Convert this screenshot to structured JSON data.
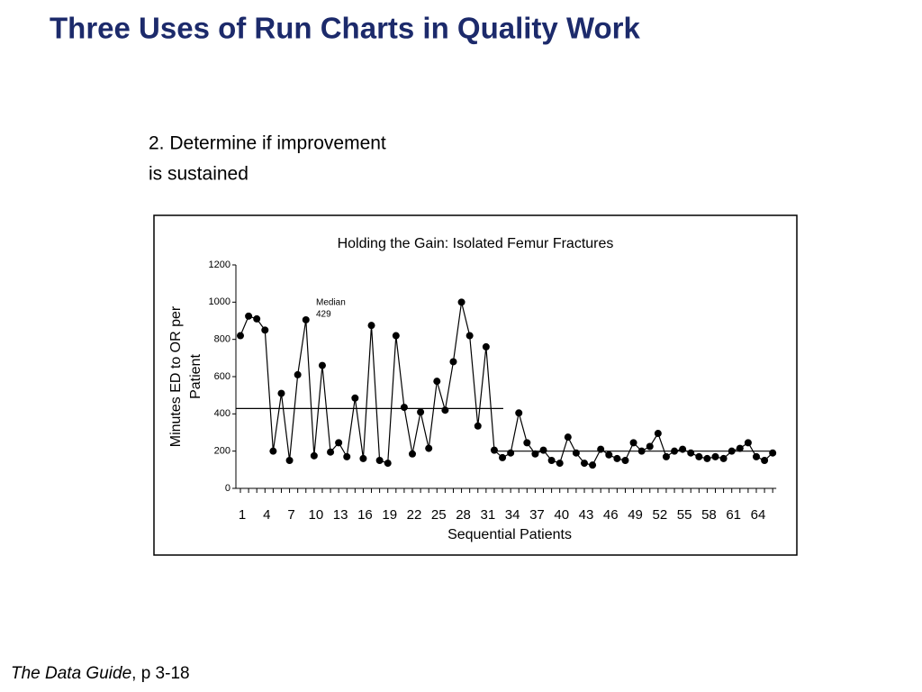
{
  "slide": {
    "title": "Three Uses of Run Charts in Quality Work",
    "subtitle": [
      "2. Determine if improvement",
      "is sustained"
    ],
    "footer": {
      "source": "The Data Guide",
      "page": ", p 3-18"
    }
  },
  "chart_data": {
    "type": "line",
    "title": "Holding the Gain: Isolated Femur Fractures",
    "x_label": "Sequential Patients",
    "y_label": [
      "Minutes ED to OR per",
      "Patient"
    ],
    "categories": [
      1,
      null,
      null,
      4,
      null,
      null,
      7,
      null,
      null,
      10,
      null,
      null,
      13,
      null,
      null,
      16,
      null,
      null,
      19,
      null,
      null,
      22,
      null,
      null,
      25,
      null,
      null,
      28,
      null,
      null,
      31,
      null,
      null,
      34,
      null,
      null,
      37,
      null,
      null,
      40,
      null,
      null,
      43,
      null,
      null,
      46,
      null,
      null,
      49,
      null,
      null,
      52,
      null,
      null,
      55,
      null,
      null,
      58,
      null,
      null,
      61,
      null,
      null,
      64,
      null,
      null
    ],
    "values": [
      820,
      925,
      910,
      850,
      200,
      510,
      150,
      610,
      905,
      175,
      660,
      195,
      245,
      170,
      485,
      160,
      875,
      150,
      135,
      820,
      435,
      185,
      410,
      215,
      575,
      420,
      680,
      1000,
      820,
      335,
      760,
      205,
      165,
      190,
      405,
      245,
      185,
      205,
      150,
      135,
      275,
      190,
      135,
      125,
      210,
      180,
      160,
      150,
      245,
      200,
      225,
      295,
      170,
      200,
      210,
      190,
      170,
      160,
      170,
      160,
      200,
      215,
      245,
      170,
      150,
      190
    ],
    "color": "#000000",
    "median_lines": [
      {
        "label": "Median",
        "value": 429,
        "start": 1,
        "end": 32
      },
      {
        "value": 200,
        "start": 32,
        "end": 66
      }
    ],
    "ylim": [
      0,
      1200
    ],
    "yticks": [
      0,
      200,
      400,
      600,
      800,
      1000,
      1200
    ]
  }
}
